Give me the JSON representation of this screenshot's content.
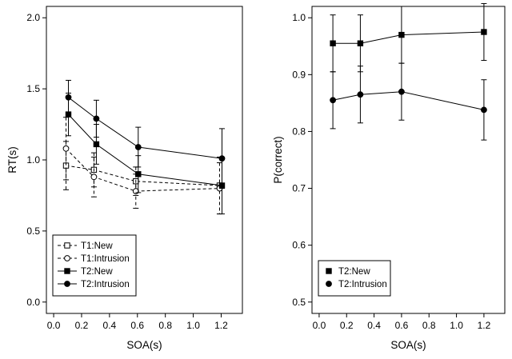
{
  "figure": {
    "background": "#ffffff",
    "axis_color": "#000000"
  },
  "chart_data": [
    {
      "type": "line",
      "title": "",
      "xlabel": "SOA(s)",
      "ylabel": "RT(s)",
      "xlim": [
        0.0,
        1.3
      ],
      "ylim": [
        0.0,
        2.0
      ],
      "xticks": [
        0.0,
        0.2,
        0.4,
        0.6,
        0.8,
        1.0,
        1.2
      ],
      "yticks": [
        0.0,
        0.5,
        1.0,
        1.5,
        2.0
      ],
      "x": [
        0.1,
        0.3,
        0.6,
        1.2
      ],
      "grid": false,
      "legend_position": "bottom-left",
      "legend_markers_only": false,
      "series": [
        {
          "name": "T1:New",
          "marker": "square-open",
          "line": "dashed",
          "values": [
            0.96,
            0.93,
            0.85,
            0.82
          ],
          "errors": [
            0.17,
            0.12,
            0.1,
            0.2
          ]
        },
        {
          "name": "T1:Intrusion",
          "marker": "circle-open",
          "line": "dashed",
          "values": [
            1.08,
            0.88,
            0.78,
            0.8
          ],
          "errors": [
            0.22,
            0.14,
            0.12,
            0.18
          ]
        },
        {
          "name": "T2:New",
          "marker": "square-filled",
          "line": "solid",
          "values": [
            1.32,
            1.11,
            0.9,
            0.82
          ],
          "errors": [
            0.15,
            0.14,
            0.13,
            0.2
          ]
        },
        {
          "name": "T2:Intrusion",
          "marker": "circle-filled",
          "line": "solid",
          "values": [
            1.44,
            1.29,
            1.09,
            1.01
          ],
          "errors": [
            0.12,
            0.13,
            0.14,
            0.21
          ]
        }
      ]
    },
    {
      "type": "line",
      "title": "",
      "xlabel": "SOA(s)",
      "ylabel": "P(correct)",
      "xlim": [
        0.0,
        1.3
      ],
      "ylim": [
        0.5,
        1.0
      ],
      "xticks": [
        0.0,
        0.2,
        0.4,
        0.6,
        0.8,
        1.0,
        1.2
      ],
      "yticks": [
        0.5,
        0.6,
        0.7,
        0.8,
        0.9,
        1.0
      ],
      "x": [
        0.1,
        0.3,
        0.6,
        1.2
      ],
      "grid": false,
      "legend_position": "bottom-left",
      "legend_markers_only": true,
      "series": [
        {
          "name": "T2:New",
          "marker": "square-filled",
          "line": "solid",
          "values": [
            0.955,
            0.955,
            0.97,
            0.975
          ],
          "errors": [
            0.05,
            0.05,
            0.05,
            0.05
          ]
        },
        {
          "name": "T2:Intrusion",
          "marker": "circle-filled",
          "line": "solid",
          "values": [
            0.855,
            0.865,
            0.87,
            0.838
          ],
          "errors": [
            0.05,
            0.05,
            0.05,
            0.053
          ]
        }
      ]
    }
  ]
}
